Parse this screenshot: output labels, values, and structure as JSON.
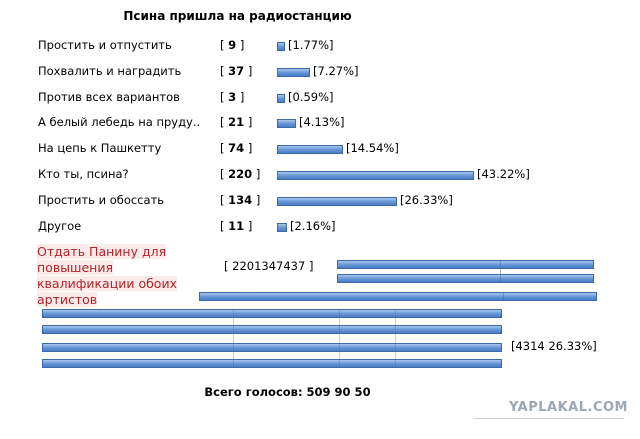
{
  "poll": {
    "title": "Псина пришла на радиостанцию",
    "options": [
      {
        "label": "Простить и отпустить",
        "count": "9",
        "percent": "[1.77%]",
        "fraction": 0.0177
      },
      {
        "label": "Похвалить и наградить",
        "count": "37",
        "percent": "[7.27%]",
        "fraction": 0.0727
      },
      {
        "label": "Против всех вариантов",
        "count": "3",
        "percent": "[0.59%]",
        "fraction": 0.0059
      },
      {
        "label": "А белый лебедь на пруду..",
        "count": "21",
        "percent": "[4.13%]",
        "fraction": 0.0413
      },
      {
        "label": "На цепь к Пашкетту",
        "count": "74",
        "percent": "[14.54%]",
        "fraction": 0.1454
      },
      {
        "label": "Кто ты, псина?",
        "count": "220",
        "percent": "[43.22%]",
        "fraction": 0.4322
      },
      {
        "label": "Простить и обоссать",
        "count": "134",
        "percent": "[26.33%]",
        "fraction": 0.2633
      },
      {
        "label": "Другое",
        "count": "11",
        "percent": "[2.16%]",
        "fraction": 0.0216
      }
    ],
    "extra_option": {
      "label": "Отдать Панину для повышения квалификации обоих артистов",
      "count": "[ 2201347437 ]",
      "percent": "[4314 26.33%]"
    },
    "total_text": "Всего голосов: 509 90 50"
  },
  "watermark": "YAPLAKAL.COM",
  "colors": {
    "bar": "#6d9bd8",
    "bar_border": "#3e69a8",
    "red_text": "#b3242a",
    "watermark": "#9aa7b5"
  }
}
